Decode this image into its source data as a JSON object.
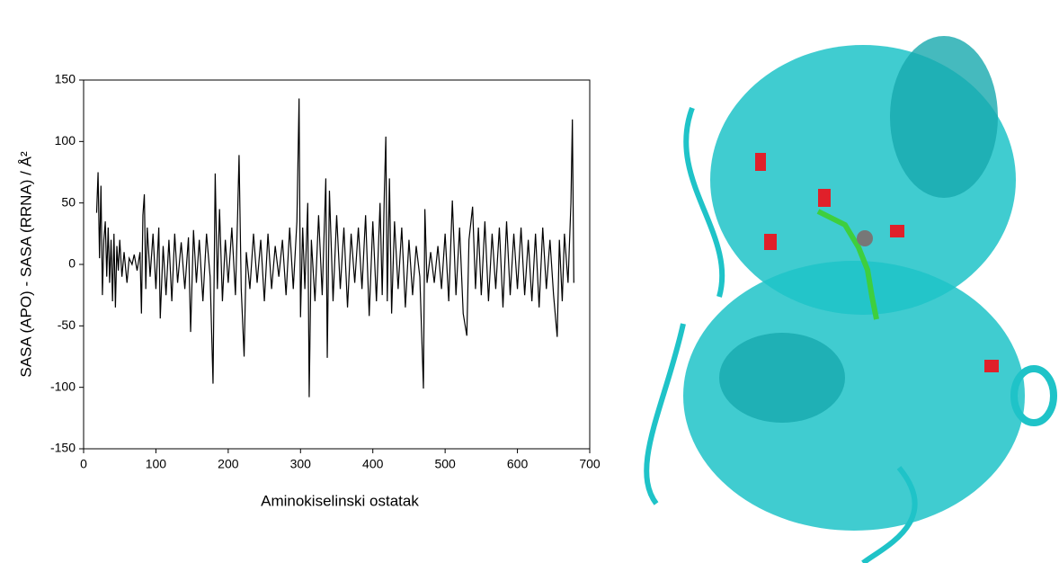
{
  "chart_data": {
    "type": "line",
    "xlabel": "Aminokiselinski ostatak",
    "ylabel": "SASA (APO) - SASA (RRNA) / Å²",
    "xlim": [
      0,
      700
    ],
    "xticks": [
      0,
      100,
      200,
      300,
      400,
      500,
      600,
      700
    ],
    "ylim": [
      -150,
      150
    ],
    "yticks": [
      -150,
      -100,
      -50,
      0,
      50,
      100,
      150
    ],
    "color": "#000000",
    "x": [
      18,
      20,
      22,
      24,
      26,
      28,
      30,
      32,
      34,
      36,
      38,
      40,
      42,
      44,
      46,
      48,
      50,
      53,
      56,
      60,
      63,
      67,
      70,
      74,
      78,
      80,
      82,
      84,
      86,
      88,
      92,
      96,
      100,
      104,
      106,
      110,
      114,
      118,
      122,
      126,
      130,
      135,
      140,
      145,
      148,
      152,
      156,
      160,
      165,
      170,
      175,
      179,
      182,
      185,
      188,
      192,
      196,
      200,
      205,
      210,
      213,
      215,
      218,
      222,
      225,
      230,
      235,
      240,
      245,
      250,
      255,
      260,
      265,
      270,
      275,
      280,
      285,
      290,
      295,
      298,
      300,
      303,
      306,
      310,
      312,
      315,
      320,
      325,
      330,
      335,
      337,
      340,
      345,
      350,
      355,
      360,
      365,
      370,
      375,
      380,
      385,
      390,
      395,
      400,
      405,
      410,
      413,
      416,
      418,
      420,
      423,
      426,
      430,
      435,
      440,
      445,
      450,
      455,
      460,
      465,
      470,
      472,
      475,
      480,
      485,
      490,
      495,
      500,
      505,
      510,
      515,
      520,
      525,
      530,
      533,
      538,
      542,
      546,
      550,
      555,
      560,
      565,
      570,
      575,
      580,
      585,
      590,
      595,
      600,
      605,
      610,
      615,
      620,
      625,
      630,
      635,
      640,
      645,
      650,
      655,
      658,
      662,
      665,
      670,
      674,
      676,
      678
    ],
    "values": [
      42,
      75,
      5,
      64,
      -25,
      20,
      35,
      -10,
      30,
      -15,
      20,
      -30,
      25,
      -35,
      15,
      -5,
      20,
      -10,
      10,
      -15,
      5,
      0,
      8,
      -5,
      10,
      -40,
      40,
      57,
      -20,
      30,
      -10,
      25,
      -20,
      30,
      -44,
      15,
      -25,
      20,
      -30,
      25,
      -15,
      18,
      -20,
      22,
      -55,
      28,
      -15,
      20,
      -30,
      25,
      -10,
      -97,
      74,
      -20,
      45,
      -30,
      20,
      -15,
      30,
      -25,
      40,
      89,
      -20,
      -75,
      10,
      -20,
      25,
      -15,
      20,
      -30,
      25,
      -20,
      15,
      -10,
      20,
      -25,
      30,
      -20,
      35,
      135,
      -43,
      30,
      -20,
      50,
      -108,
      20,
      -30,
      40,
      -25,
      70,
      -76,
      60,
      -30,
      40,
      -20,
      30,
      -35,
      25,
      -15,
      30,
      -20,
      40,
      -42,
      35,
      -30,
      50,
      -25,
      60,
      104,
      -30,
      70,
      -40,
      35,
      -20,
      30,
      -35,
      20,
      -25,
      15,
      -10,
      -101,
      45,
      -15,
      10,
      -15,
      15,
      -20,
      25,
      -30,
      52,
      -25,
      30,
      -40,
      -58,
      20,
      47,
      -20,
      30,
      -25,
      35,
      -30,
      25,
      -20,
      30,
      -35,
      35,
      -25,
      25,
      -20,
      30,
      -25,
      20,
      -30,
      25,
      -35,
      30,
      -20,
      20,
      -25,
      -59,
      20,
      -30,
      25,
      -15,
      50,
      118,
      -15
    ]
  }
}
